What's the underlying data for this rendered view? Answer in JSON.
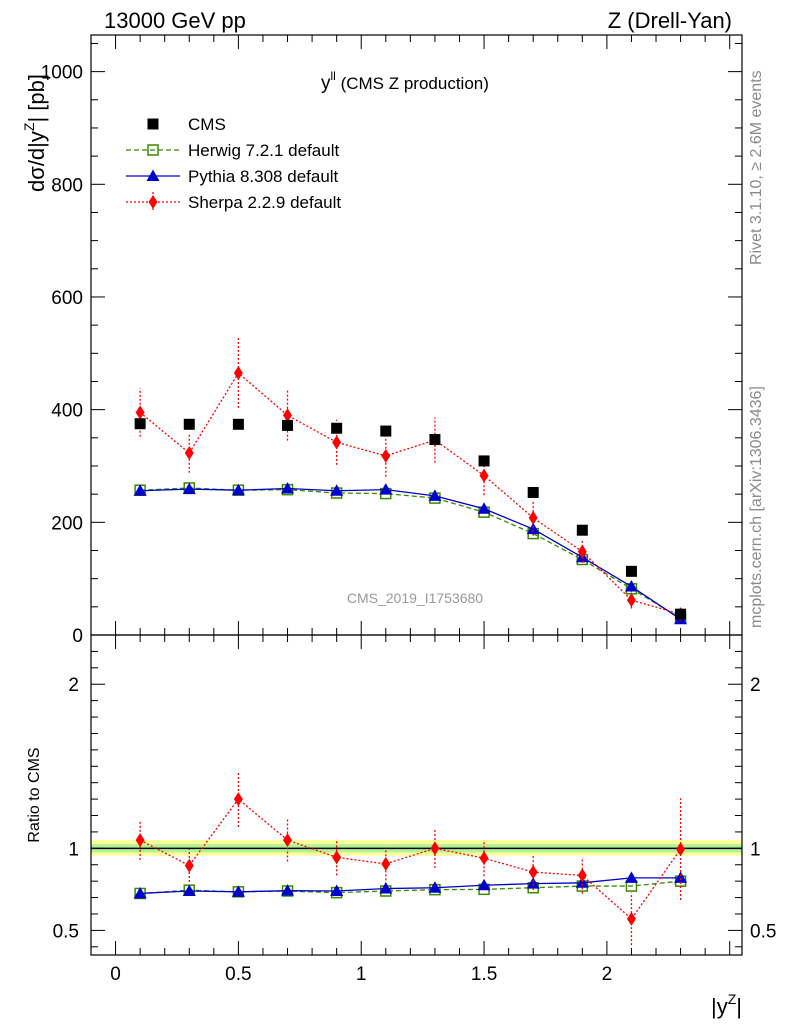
{
  "header": {
    "left": "13000 GeV pp",
    "right": "Z (Drell-Yan)"
  },
  "side_labels": {
    "top": "Rivet 3.1.10, ≥ 2.6M events",
    "bottom": "mcplots.cern.ch [arXiv:1306.3436]"
  },
  "main_panel": {
    "title_main": "y",
    "title_sup": "ll",
    "title_rest": " (CMS Z production)",
    "ylabel_prefix": "dσ/d|y",
    "ylabel_sup": "Z",
    "ylabel_suffix": "| [pb]",
    "watermark": "CMS_2019_I1753680"
  },
  "ratio_panel": {
    "ylabel": "Ratio to CMS"
  },
  "xlabel_prefix": "|y",
  "xlabel_sup": "Z",
  "xlabel_suffix": "|",
  "chart_data": {
    "type": "scatter",
    "x": [
      0.1,
      0.3,
      0.5,
      0.7,
      0.9,
      1.1,
      1.3,
      1.5,
      1.7,
      1.9,
      2.1,
      2.3
    ],
    "xlim": [
      -0.1,
      2.55
    ],
    "xticks": [
      0,
      0.5,
      1,
      1.5,
      2
    ],
    "xtick_labels": [
      "0",
      "0.5",
      "1",
      "1.5",
      "2"
    ],
    "main": {
      "ylim": [
        0,
        1065
      ],
      "yticks": [
        0,
        200,
        400,
        600,
        800,
        1000
      ],
      "ytick_labels": [
        "0",
        "200",
        "400",
        "600",
        "800",
        "1000"
      ]
    },
    "ratio": {
      "ylim": [
        0.35,
        2.3
      ],
      "yticks": [
        0.5,
        1,
        2
      ],
      "ytick_labels": [
        "0.5",
        "1",
        "2"
      ],
      "band_outer": [
        0.955,
        1.05
      ],
      "band_inner": [
        0.975,
        1.025
      ]
    },
    "legend_position": "top-left",
    "series": [
      {
        "name": "CMS",
        "color": "#000000",
        "marker": "square",
        "values": [
          375,
          374,
          374,
          372,
          367,
          362,
          347,
          309,
          253,
          186,
          113,
          37
        ]
      },
      {
        "name": "Herwig 7.2.1 default",
        "color": "#3a8a00",
        "marker": "open-square",
        "line": "dashed",
        "values": [
          257,
          261,
          257,
          258,
          252,
          251,
          243,
          218,
          180,
          134,
          82,
          30
        ],
        "ratio": [
          0.725,
          0.745,
          0.735,
          0.74,
          0.73,
          0.74,
          0.748,
          0.75,
          0.76,
          0.77,
          0.77,
          0.8
        ]
      },
      {
        "name": "Pythia 8.308 default",
        "color": "#0000cc",
        "marker": "triangle",
        "line": "solid",
        "values": [
          256,
          259,
          257,
          260,
          256,
          258,
          247,
          224,
          188,
          138,
          86,
          28
        ],
        "ratio": [
          0.725,
          0.74,
          0.735,
          0.742,
          0.74,
          0.755,
          0.76,
          0.775,
          0.785,
          0.79,
          0.82,
          0.82
        ]
      },
      {
        "name": "Sherpa 2.2.9 default",
        "color": "#ff0000",
        "marker": "diamond",
        "line": "dotted",
        "values": [
          395,
          323,
          465,
          390,
          342,
          318,
          346,
          283,
          208,
          148,
          62,
          37
        ],
        "errors": [
          43,
          35,
          62,
          45,
          40,
          37,
          40,
          35,
          32,
          20,
          15,
          8
        ],
        "ratio": [
          1.05,
          0.895,
          1.3,
          1.05,
          0.945,
          0.905,
          1.0,
          0.94,
          0.855,
          0.835,
          0.57,
          0.995
        ],
        "ratio_errors": [
          0.12,
          0.1,
          0.17,
          0.13,
          0.11,
          0.1,
          0.12,
          0.11,
          0.11,
          0.11,
          0.16,
          0.31
        ]
      }
    ]
  }
}
